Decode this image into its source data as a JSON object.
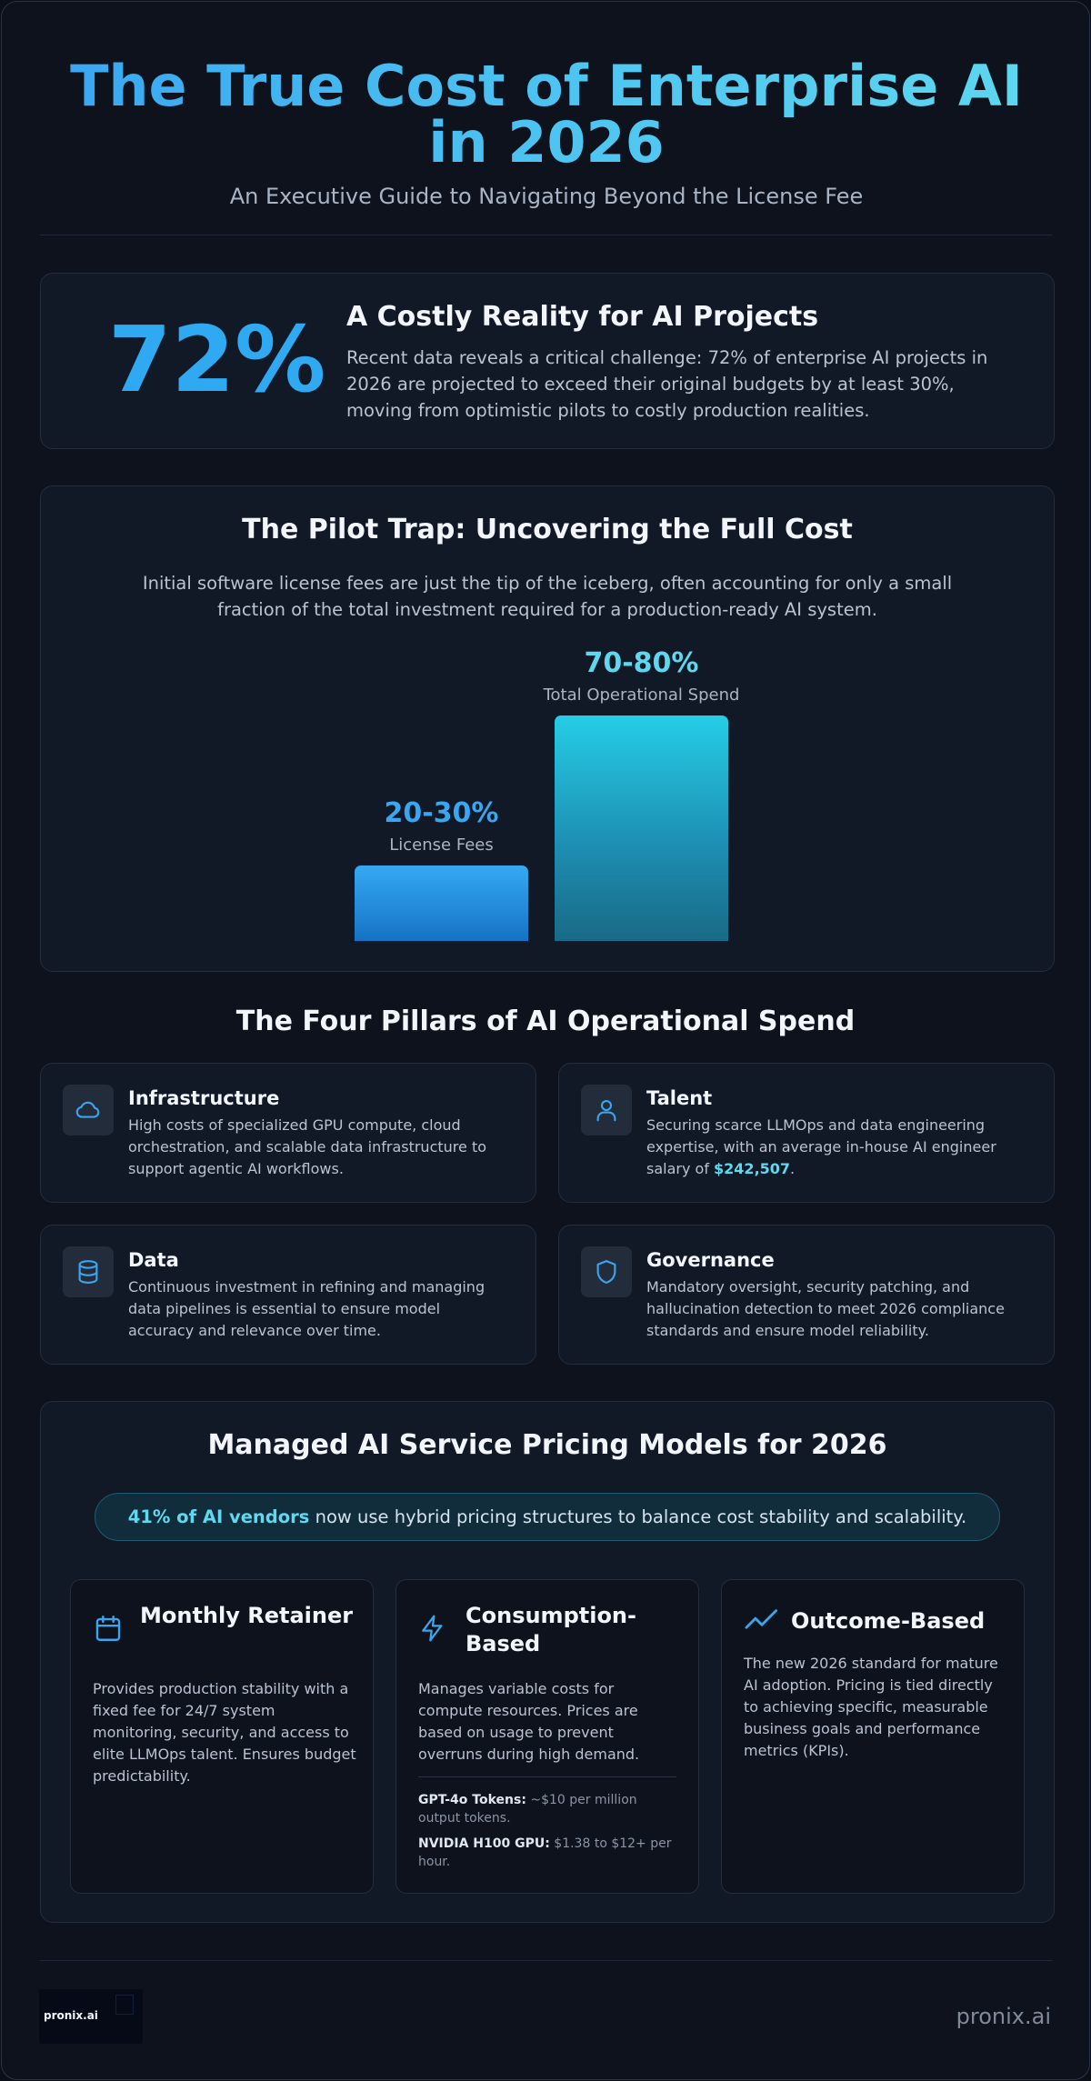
{
  "header": {
    "title": "The True Cost of Enterprise AI in 2026",
    "subtitle": "An Executive Guide to Navigating Beyond the License Fee"
  },
  "stat": {
    "value": "72%",
    "title": "A Costly Reality for AI Projects",
    "text": "Recent data reveals a critical challenge: 72% of enterprise AI projects in 2026 are projected to exceed their original budgets by at least 30%, moving from optimistic pilots to costly production realities."
  },
  "pilot": {
    "title": "The Pilot Trap: Uncovering the Full Cost",
    "text": "Initial software license fees are just the tip of the iceberg, often accounting for only a small fraction of the total investment required for a production-ready AI system."
  },
  "chart_data": {
    "type": "bar",
    "categories": [
      "License Fees",
      "Total Operational Spend"
    ],
    "value_labels": [
      "20-30%",
      "70-80%"
    ],
    "values": [
      25,
      75
    ],
    "value_colors": [
      "#38a6f1",
      "#5ed7ef"
    ],
    "ylim": [
      0,
      100
    ]
  },
  "pillars": {
    "title": "The Four Pillars of AI Operational Spend",
    "items": [
      {
        "icon": "cloud-icon",
        "title": "Infrastructure",
        "text": "High costs of specialized GPU compute, cloud orchestration, and scalable data infrastructure to support agentic AI workflows."
      },
      {
        "icon": "user-icon",
        "title": "Talent",
        "text_before": "Securing scarce LLMOps and data engineering expertise, with an average in-house AI engineer salary of ",
        "highlight": "$242,507",
        "text_after": "."
      },
      {
        "icon": "database-icon",
        "title": "Data",
        "text": "Continuous investment in refining and managing data pipelines is essential to ensure model accuracy and relevance over time."
      },
      {
        "icon": "shield-icon",
        "title": "Governance",
        "text": "Mandatory oversight, security patching, and hallucination detection to meet 2026 compliance standards and ensure model reliability."
      }
    ]
  },
  "pricing": {
    "title": "Managed AI Service Pricing Models for 2026",
    "banner_highlight": "41% of AI vendors",
    "banner_text": " now use hybrid pricing structures to balance cost stability and scalability.",
    "models": [
      {
        "icon": "calendar-icon",
        "title": "Monthly Retainer",
        "text": "Provides production stability with a fixed fee for 24/7 system monitoring, security, and access to elite LLMOps talent. Ensures budget predictability."
      },
      {
        "icon": "lightning-icon",
        "title": "Consumption-Based",
        "text": "Manages variable costs for compute resources. Prices are based on usage to prevent overruns during high demand.",
        "notes": [
          {
            "label": "GPT-4o Tokens:",
            "value": " ~$10 per million output tokens."
          },
          {
            "label": "NVIDIA H100 GPU:",
            "value": " $1.38 to $12+ per hour."
          }
        ]
      },
      {
        "icon": "trend-up-icon",
        "title": "Outcome-Based",
        "text": "The new 2026 standard for mature AI adoption. Pricing is tied directly to achieving specific, measurable business goals and performance metrics (KPIs)."
      }
    ]
  },
  "footer": {
    "logo_text": "pronix.ai",
    "site": "pronix.ai"
  },
  "colors": {
    "accent_blue": "#2ea9f2",
    "accent_cyan": "#5fd9ef",
    "background": "#0d121c",
    "card": "#121926"
  }
}
